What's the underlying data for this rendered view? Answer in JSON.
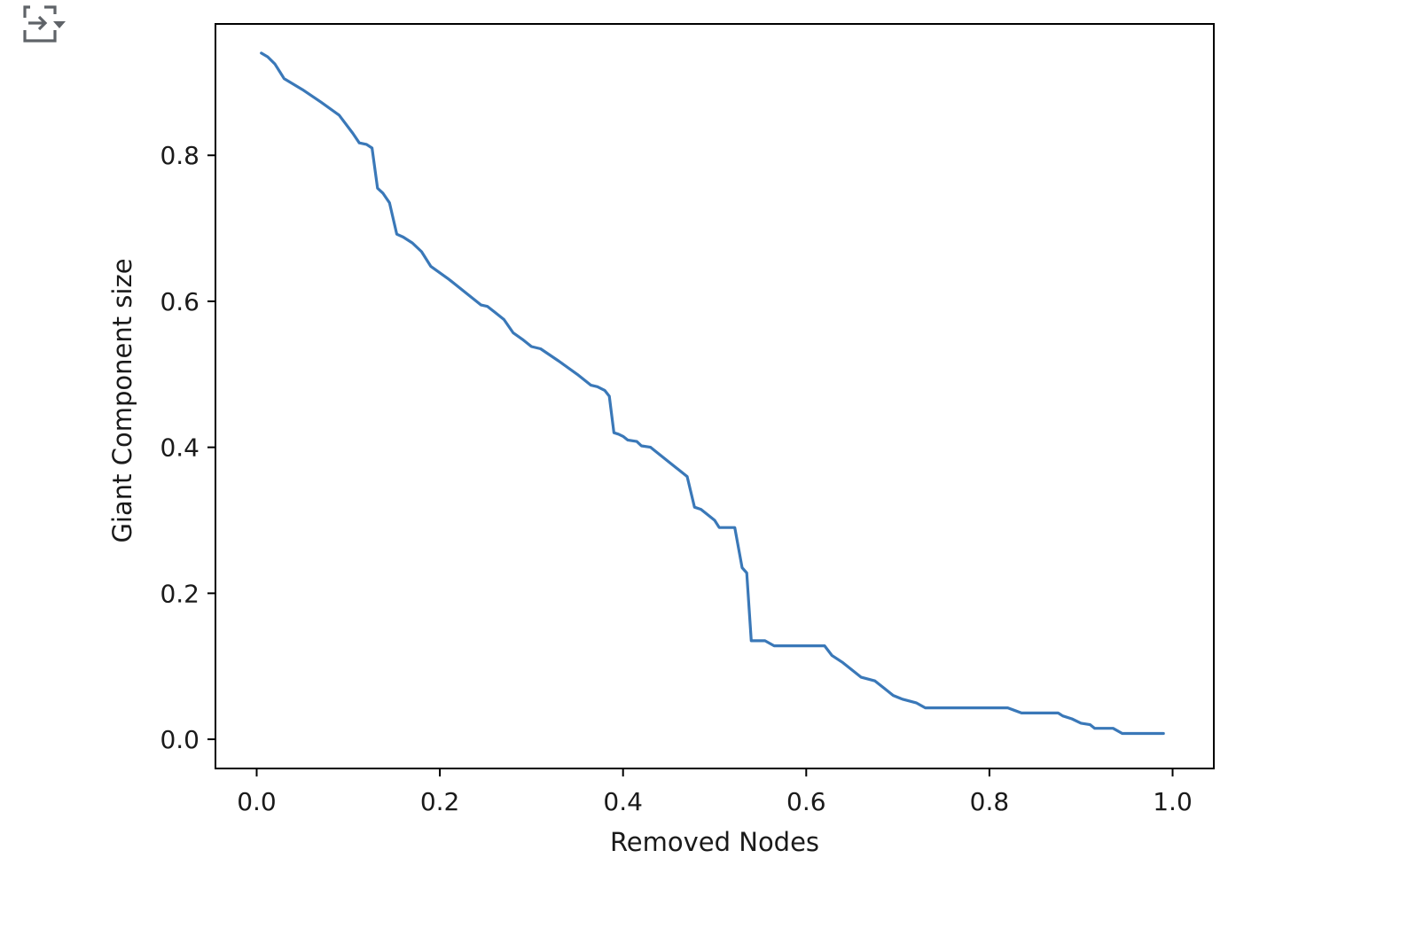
{
  "output_toggle": {
    "icon": "output-collapse-icon"
  },
  "chart_data": {
    "type": "line",
    "title": "",
    "xlabel": "Removed Nodes",
    "ylabel": "Giant Component size",
    "xlim": [
      -0.045,
      1.045
    ],
    "ylim": [
      -0.04,
      0.98
    ],
    "xticks": [
      0.0,
      0.2,
      0.4,
      0.6,
      0.8,
      1.0
    ],
    "xtick_labels": [
      "0.0",
      "0.2",
      "0.4",
      "0.6",
      "0.8",
      "1.0"
    ],
    "yticks": [
      0.0,
      0.2,
      0.4,
      0.6,
      0.8
    ],
    "ytick_labels": [
      "0.0",
      "0.2",
      "0.4",
      "0.6",
      "0.8"
    ],
    "grid": false,
    "line_color": "#3a78b8",
    "series": [
      {
        "x": [
          0.005,
          0.012,
          0.02,
          0.025,
          0.03,
          0.05,
          0.07,
          0.09,
          0.105,
          0.112,
          0.12,
          0.126,
          0.132,
          0.138,
          0.145,
          0.153,
          0.16,
          0.17,
          0.18,
          0.19,
          0.21,
          0.23,
          0.245,
          0.252,
          0.26,
          0.27,
          0.28,
          0.29,
          0.3,
          0.31,
          0.33,
          0.35,
          0.365,
          0.372,
          0.38,
          0.385,
          0.39,
          0.395,
          0.4,
          0.405,
          0.415,
          0.42,
          0.43,
          0.44,
          0.45,
          0.46,
          0.47,
          0.478,
          0.485,
          0.49,
          0.5,
          0.505,
          0.51,
          0.518,
          0.522,
          0.53,
          0.535,
          0.54,
          0.545,
          0.555,
          0.565,
          0.58,
          0.6,
          0.62,
          0.628,
          0.64,
          0.66,
          0.675,
          0.685,
          0.695,
          0.705,
          0.72,
          0.73,
          0.75,
          0.8,
          0.82,
          0.835,
          0.85,
          0.875,
          0.88,
          0.89,
          0.9,
          0.91,
          0.915,
          0.935,
          0.945,
          0.96,
          0.99
        ],
        "y": [
          0.94,
          0.935,
          0.925,
          0.915,
          0.905,
          0.89,
          0.873,
          0.855,
          0.83,
          0.817,
          0.815,
          0.81,
          0.755,
          0.748,
          0.735,
          0.692,
          0.688,
          0.68,
          0.668,
          0.648,
          0.63,
          0.61,
          0.595,
          0.593,
          0.585,
          0.575,
          0.557,
          0.548,
          0.538,
          0.535,
          0.518,
          0.5,
          0.485,
          0.483,
          0.478,
          0.47,
          0.42,
          0.418,
          0.415,
          0.41,
          0.408,
          0.402,
          0.4,
          0.39,
          0.38,
          0.37,
          0.36,
          0.318,
          0.315,
          0.31,
          0.3,
          0.29,
          0.29,
          0.29,
          0.29,
          0.235,
          0.228,
          0.135,
          0.135,
          0.135,
          0.128,
          0.128,
          0.128,
          0.128,
          0.115,
          0.105,
          0.085,
          0.08,
          0.07,
          0.06,
          0.055,
          0.05,
          0.043,
          0.043,
          0.043,
          0.043,
          0.036,
          0.036,
          0.036,
          0.032,
          0.028,
          0.022,
          0.02,
          0.015,
          0.015,
          0.008,
          0.008,
          0.008
        ]
      }
    ]
  }
}
